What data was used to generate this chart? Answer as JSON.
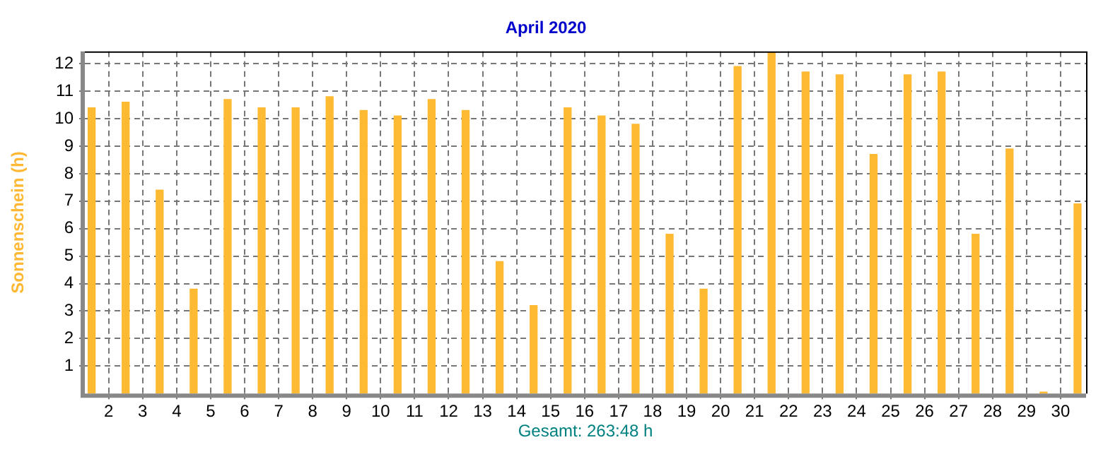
{
  "chart_data": {
    "type": "bar",
    "title": "April 2020",
    "ylabel": "Sonnenschein (h)",
    "annotations": [
      "Gesamt: 263:48 h"
    ],
    "x": [
      1.5,
      2.5,
      3.5,
      4.5,
      5.5,
      6.5,
      7.5,
      8.5,
      9.5,
      10.5,
      11.5,
      12.5,
      13.5,
      14.5,
      15.5,
      16.5,
      17.5,
      18.5,
      19.5,
      20.5,
      21.5,
      22.5,
      23.5,
      24.5,
      25.5,
      26.5,
      27.5,
      28.5,
      29.5,
      30.5
    ],
    "values": [
      10.4,
      10.6,
      7.4,
      3.8,
      10.7,
      10.4,
      10.4,
      10.8,
      10.3,
      10.1,
      10.7,
      10.3,
      4.8,
      3.2,
      10.4,
      10.1,
      9.8,
      5.8,
      3.8,
      11.9,
      12.4,
      11.7,
      11.6,
      8.7,
      11.6,
      11.7,
      5.8,
      8.9,
      0.05,
      6.9
    ],
    "color": "#ffba33",
    "xlim": [
      1.3,
      30.75
    ],
    "xticks": [
      2,
      3,
      4,
      5,
      6,
      7,
      8,
      9,
      10,
      11,
      12,
      13,
      14,
      15,
      16,
      17,
      18,
      19,
      20,
      21,
      22,
      23,
      24,
      25,
      26,
      27,
      28,
      29,
      30
    ],
    "ylim": [
      0,
      12.45
    ],
    "yticks": [
      1,
      2,
      3,
      4,
      5,
      6,
      7,
      8,
      9,
      10,
      11,
      12
    ],
    "grid": true
  }
}
